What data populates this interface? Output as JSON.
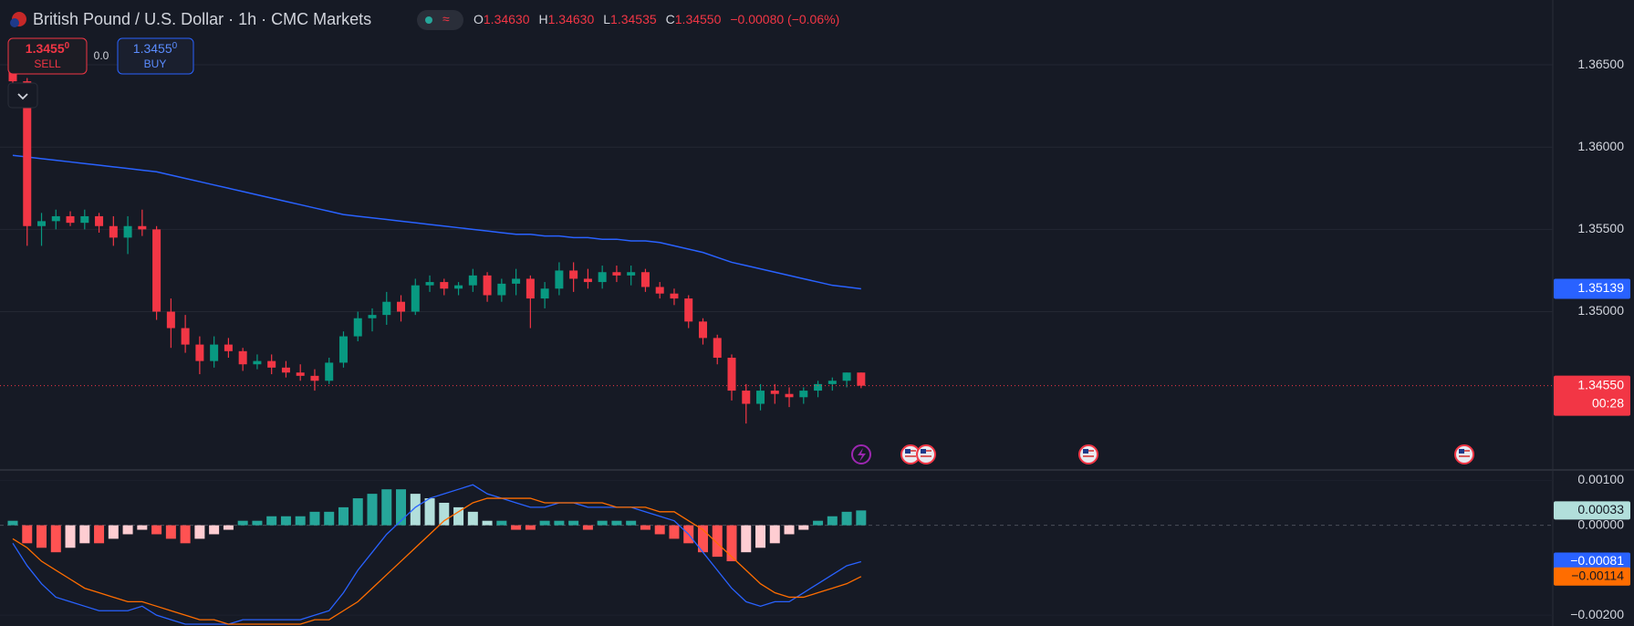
{
  "chart_data": [
    {
      "type": "candlestick",
      "title": "British Pound / U.S. Dollar · 1h · CMC Markets",
      "ohlc_header": [
        {
          "label": "O",
          "value": "1.34630"
        },
        {
          "label": "H",
          "value": "1.34630"
        },
        {
          "label": "L",
          "value": "1.34535"
        },
        {
          "label": "C",
          "value": "1.34550"
        }
      ],
      "change": "−0.00080 (−0.06%)",
      "trade": {
        "sell_price": "1.3455",
        "sell_sup": "0",
        "sell": "SELL",
        "spread": "0.0",
        "buy_price": "1.3455",
        "buy_sup": "0",
        "buy": "BUY"
      },
      "open": [
        1.3648,
        1.364,
        1.3552,
        1.3555,
        1.3558,
        1.3554,
        1.3558,
        1.3552,
        1.3545,
        1.3552,
        1.355,
        1.35,
        1.349,
        1.348,
        1.347,
        1.348,
        1.3476,
        1.3468,
        1.347,
        1.3466,
        1.3463,
        1.3461,
        1.3458,
        1.3469,
        1.3485,
        1.3496,
        1.3498,
        1.3506,
        1.35,
        1.3516,
        1.3518,
        1.3514,
        1.3516,
        1.3522,
        1.351,
        1.3517,
        1.352,
        1.3508,
        1.3514,
        1.3525,
        1.352,
        1.3518,
        1.3524,
        1.3522,
        1.3524,
        1.3515,
        1.3511,
        1.3508,
        1.3494,
        1.3484,
        1.3472,
        1.3452,
        1.3444,
        1.3452,
        1.345,
        1.3448,
        1.3452,
        1.3456,
        1.3458,
        1.3463
      ],
      "high": [
        1.3652,
        1.3642,
        1.356,
        1.3562,
        1.3561,
        1.3562,
        1.356,
        1.3558,
        1.3558,
        1.3562,
        1.3552,
        1.3508,
        1.3498,
        1.3485,
        1.3485,
        1.3484,
        1.3478,
        1.3474,
        1.3474,
        1.347,
        1.3468,
        1.3465,
        1.3472,
        1.3488,
        1.35,
        1.3502,
        1.3512,
        1.351,
        1.352,
        1.3522,
        1.352,
        1.3518,
        1.3526,
        1.3524,
        1.352,
        1.3526,
        1.3522,
        1.3518,
        1.353,
        1.353,
        1.3526,
        1.3528,
        1.3528,
        1.3528,
        1.3526,
        1.3518,
        1.3514,
        1.351,
        1.3496,
        1.3486,
        1.3474,
        1.3456,
        1.3456,
        1.3456,
        1.3454,
        1.3454,
        1.3458,
        1.346,
        1.3463,
        1.3463
      ],
      "low": [
        1.363,
        1.354,
        1.354,
        1.355,
        1.3552,
        1.355,
        1.3548,
        1.354,
        1.3535,
        1.3546,
        1.3495,
        1.3478,
        1.3475,
        1.3462,
        1.3466,
        1.3472,
        1.3464,
        1.3465,
        1.3462,
        1.346,
        1.3458,
        1.3452,
        1.3456,
        1.3466,
        1.3482,
        1.3488,
        1.3492,
        1.3494,
        1.3498,
        1.3512,
        1.351,
        1.351,
        1.3512,
        1.3506,
        1.3506,
        1.351,
        1.349,
        1.3502,
        1.351,
        1.3512,
        1.3514,
        1.3514,
        1.3518,
        1.3516,
        1.3512,
        1.3508,
        1.3504,
        1.349,
        1.348,
        1.3468,
        1.3446,
        1.3432,
        1.344,
        1.3444,
        1.3442,
        1.3444,
        1.3448,
        1.3452,
        1.3454,
        1.34535
      ],
      "close": [
        1.364,
        1.3552,
        1.3555,
        1.3558,
        1.3554,
        1.3558,
        1.3552,
        1.3545,
        1.3552,
        1.355,
        1.35,
        1.349,
        1.348,
        1.347,
        1.348,
        1.3476,
        1.3468,
        1.347,
        1.3466,
        1.3463,
        1.3461,
        1.3458,
        1.3469,
        1.3485,
        1.3496,
        1.3498,
        1.3506,
        1.35,
        1.3516,
        1.3518,
        1.3514,
        1.3516,
        1.3522,
        1.351,
        1.3517,
        1.352,
        1.3508,
        1.3514,
        1.3525,
        1.352,
        1.3518,
        1.3524,
        1.3522,
        1.3524,
        1.3515,
        1.3511,
        1.3508,
        1.3494,
        1.3484,
        1.3472,
        1.3452,
        1.3444,
        1.3452,
        1.345,
        1.3448,
        1.3452,
        1.3456,
        1.3458,
        1.3463,
        1.3455
      ],
      "up_color": "#089981",
      "down_color": "#f23645",
      "ma": {
        "color": "#2962ff",
        "last_label": "1.35139",
        "values": [
          1.3595,
          1.3594,
          1.3593,
          1.3592,
          1.3591,
          1.359,
          1.3589,
          1.3588,
          1.3587,
          1.3586,
          1.3585,
          1.3583,
          1.3581,
          1.3579,
          1.3577,
          1.3575,
          1.3573,
          1.3571,
          1.3569,
          1.3567,
          1.3565,
          1.3563,
          1.3561,
          1.3559,
          1.3558,
          1.3557,
          1.3556,
          1.3555,
          1.3554,
          1.3553,
          1.3552,
          1.3551,
          1.355,
          1.3549,
          1.3548,
          1.3547,
          1.3547,
          1.3546,
          1.3546,
          1.3545,
          1.3545,
          1.3544,
          1.3544,
          1.3543,
          1.3543,
          1.3542,
          1.354,
          1.3538,
          1.3536,
          1.3533,
          1.353,
          1.3528,
          1.3526,
          1.3524,
          1.3522,
          1.352,
          1.3518,
          1.3516,
          1.3515,
          1.35139
        ]
      },
      "last_price_label": "1.34550",
      "countdown": "00:28",
      "ylim": [
        1.34038,
        1.36894
      ],
      "yticks": [
        {
          "value": 1.365,
          "label": "1.36500"
        },
        {
          "value": 1.36,
          "label": "1.36000"
        },
        {
          "value": 1.355,
          "label": "1.35500"
        },
        {
          "value": 1.35,
          "label": "1.35000"
        }
      ],
      "grid": true
    },
    {
      "type": "macd",
      "histogram": [
        0.0001,
        -0.0004,
        -0.0005,
        -0.0006,
        -0.0005,
        -0.0004,
        -0.0004,
        -0.0003,
        -0.0002,
        -0.0001,
        -0.0002,
        -0.0003,
        -0.0004,
        -0.0003,
        -0.0002,
        -0.0001,
        0.0001,
        0.0001,
        0.0002,
        0.0002,
        0.0002,
        0.0003,
        0.0003,
        0.0004,
        0.0006,
        0.0007,
        0.0008,
        0.0008,
        0.0007,
        0.0006,
        0.0005,
        0.0004,
        0.0003,
        0.0001,
        0.0001,
        -0.0001,
        -0.0001,
        0.0001,
        0.0001,
        0.0001,
        -0.0001,
        0.0001,
        0.0001,
        0.0001,
        -0.0001,
        -0.0002,
        -0.0003,
        -0.0004,
        -0.0006,
        -0.0007,
        -0.0008,
        -0.0006,
        -0.0005,
        -0.0004,
        -0.0002,
        -0.0001,
        0.0001,
        0.0002,
        0.0003,
        0.00033
      ],
      "hist_colors": {
        "pos_up": "#26a69a",
        "pos_down": "#b2dfdb",
        "neg_down": "#ff5252",
        "neg_up": "#ffcdd2"
      },
      "hist_last_label": "0.00033",
      "macd": {
        "color": "#2962ff",
        "last_label": "−0.00081",
        "values": [
          -0.0004,
          -0.0009,
          -0.0013,
          -0.0016,
          -0.0017,
          -0.0018,
          -0.0019,
          -0.0019,
          -0.0019,
          -0.0018,
          -0.002,
          -0.0021,
          -0.0022,
          -0.0022,
          -0.0022,
          -0.0022,
          -0.0021,
          -0.0021,
          -0.0021,
          -0.0021,
          -0.0021,
          -0.002,
          -0.0019,
          -0.0015,
          -0.001,
          -0.0006,
          -0.0002,
          0.0001,
          0.0004,
          0.0006,
          0.0007,
          0.0008,
          0.0009,
          0.0007,
          0.0006,
          0.0005,
          0.0004,
          0.0004,
          0.0005,
          0.0005,
          0.0004,
          0.0004,
          0.0004,
          0.0004,
          0.0003,
          0.0002,
          0.0001,
          -0.0002,
          -0.0006,
          -0.001,
          -0.0014,
          -0.0017,
          -0.0018,
          -0.0017,
          -0.0017,
          -0.0015,
          -0.0013,
          -0.0011,
          -0.0009,
          -0.00081
        ]
      },
      "signal": {
        "color": "#ff6d00",
        "last_label": "−0.00114",
        "values": [
          -0.0003,
          -0.0005,
          -0.0008,
          -0.001,
          -0.0012,
          -0.0014,
          -0.0015,
          -0.0016,
          -0.0017,
          -0.0017,
          -0.0018,
          -0.0019,
          -0.002,
          -0.0021,
          -0.0021,
          -0.0022,
          -0.0022,
          -0.0022,
          -0.0022,
          -0.0022,
          -0.0022,
          -0.0021,
          -0.0021,
          -0.0019,
          -0.0017,
          -0.0014,
          -0.0011,
          -0.0008,
          -0.0005,
          -0.0002,
          0.0001,
          0.0003,
          0.0005,
          0.0006,
          0.0006,
          0.0006,
          0.0006,
          0.0005,
          0.0005,
          0.0005,
          0.0005,
          0.0005,
          0.0004,
          0.0004,
          0.0004,
          0.0003,
          0.0003,
          0.0001,
          -0.0001,
          -0.0004,
          -0.0007,
          -0.001,
          -0.0013,
          -0.0015,
          -0.0016,
          -0.0016,
          -0.0015,
          -0.0014,
          -0.0013,
          -0.00114
        ]
      },
      "ylim": [
        -0.00224,
        0.00123
      ],
      "yticks": [
        {
          "value": 0.001,
          "label": "0.00100"
        },
        {
          "value": 0,
          "label": "0.00000"
        },
        {
          "value": -0.002,
          "label": "−0.00200"
        }
      ]
    }
  ]
}
